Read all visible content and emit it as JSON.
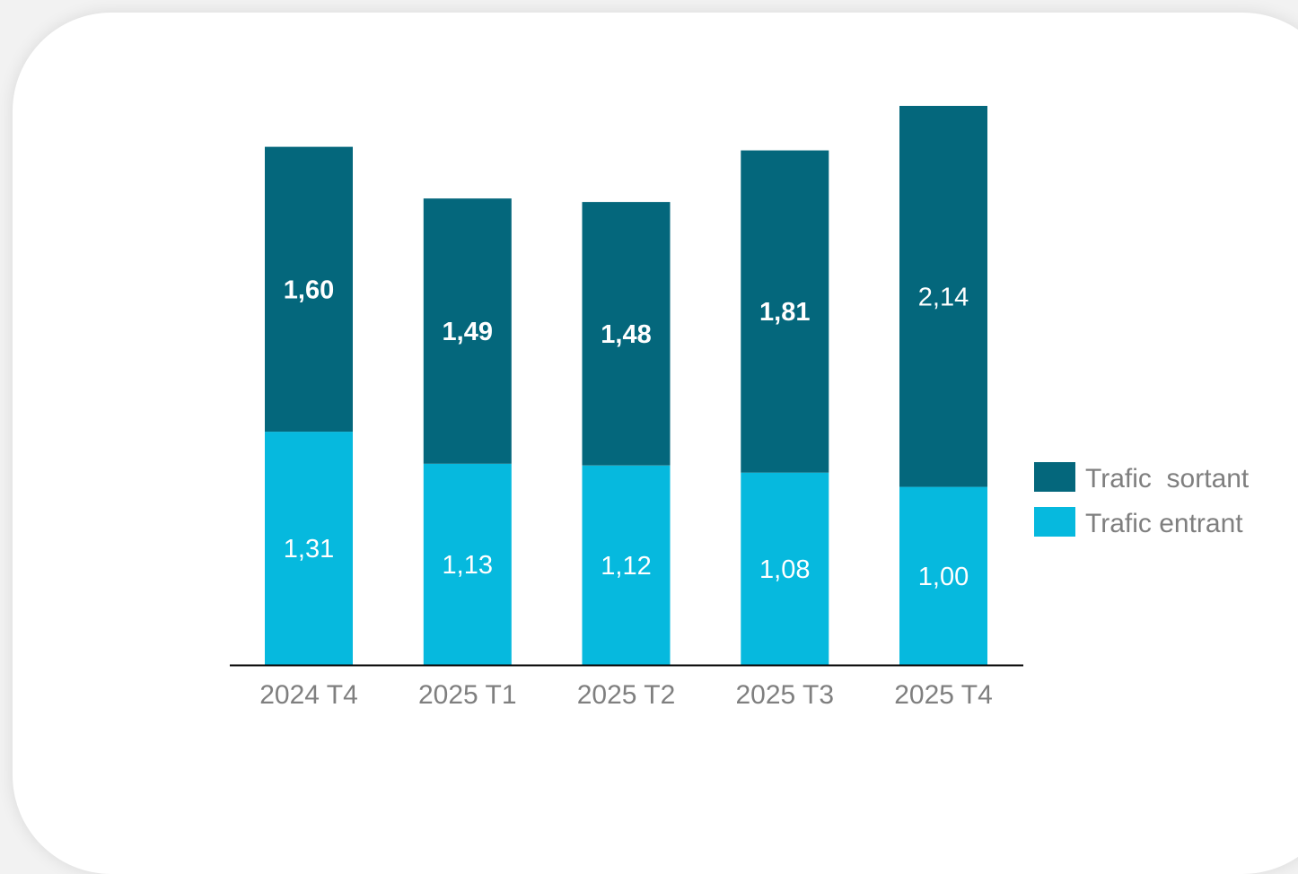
{
  "chart_data": {
    "type": "bar",
    "stacked": true,
    "categories": [
      "2024 T4",
      "2025 T1",
      "2025 T2",
      "2025 T3",
      "2025 T4"
    ],
    "series": [
      {
        "name": "Trafic entrant",
        "values": [
          1.31,
          1.13,
          1.12,
          1.08,
          1.0
        ],
        "labels": [
          "1,31",
          "1,13",
          "1,12",
          "1,08",
          "1,00"
        ],
        "color": "#06b9de",
        "bold_labels": [
          false,
          false,
          false,
          false,
          false
        ]
      },
      {
        "name": "Trafic  sortant",
        "values": [
          1.6,
          1.49,
          1.48,
          1.81,
          2.14
        ],
        "labels": [
          "1,60",
          "1,49",
          "1,48",
          "1,81",
          "2,14"
        ],
        "color": "#04677c",
        "bold_labels": [
          true,
          true,
          true,
          true,
          false
        ]
      }
    ],
    "ylim": [
      0,
      3.14
    ],
    "grid": false,
    "legend_position": "right",
    "legend_order": [
      "Trafic  sortant",
      "Trafic entrant"
    ],
    "axis_color": "#000000",
    "label_color": "#7f7f7f"
  }
}
